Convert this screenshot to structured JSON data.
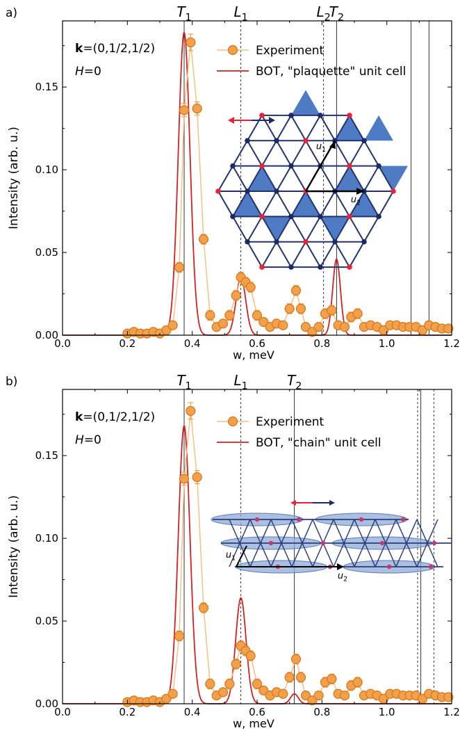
{
  "x_experiment": [
    0.2,
    0.22,
    0.24,
    0.26,
    0.28,
    0.3,
    0.32,
    0.34,
    0.36,
    0.375,
    0.395,
    0.415,
    0.435,
    0.455,
    0.475,
    0.495,
    0.515,
    0.535,
    0.55,
    0.565,
    0.58,
    0.6,
    0.62,
    0.64,
    0.66,
    0.68,
    0.7,
    0.72,
    0.735,
    0.75,
    0.77,
    0.79,
    0.81,
    0.83,
    0.85,
    0.87,
    0.89,
    0.91,
    0.93,
    0.95,
    0.97,
    0.99,
    1.01,
    1.03,
    1.05,
    1.07,
    1.09,
    1.11,
    1.13,
    1.15,
    1.17,
    1.19
  ],
  "y_experiment": [
    0.001,
    0.002,
    0.001,
    0.001,
    0.002,
    0.001,
    0.003,
    0.006,
    0.041,
    0.136,
    0.177,
    0.137,
    0.058,
    0.012,
    0.005,
    0.007,
    0.012,
    0.024,
    0.035,
    0.032,
    0.029,
    0.012,
    0.008,
    0.005,
    0.007,
    0.006,
    0.016,
    0.027,
    0.016,
    0.005,
    0.002,
    0.005,
    0.013,
    0.015,
    0.006,
    0.005,
    0.011,
    0.013,
    0.005,
    0.006,
    0.005,
    0.003,
    0.006,
    0.006,
    0.005,
    0.005,
    0.005,
    0.003,
    0.006,
    0.005,
    0.004,
    0.004
  ],
  "error_experiment": [
    0.002,
    0.002,
    0.002,
    0.002,
    0.002,
    0.002,
    0.002,
    0.002,
    0.003,
    0.004,
    0.005,
    0.004,
    0.003,
    0.003,
    0.002,
    0.002,
    0.003,
    0.003,
    0.003,
    0.003,
    0.003,
    0.003,
    0.002,
    0.002,
    0.002,
    0.002,
    0.003,
    0.003,
    0.003,
    0.002,
    0.002,
    0.002,
    0.003,
    0.003,
    0.002,
    0.002,
    0.003,
    0.003,
    0.002,
    0.002,
    0.002,
    0.002,
    0.002,
    0.002,
    0.002,
    0.002,
    0.002,
    0.002,
    0.002,
    0.002,
    0.002,
    0.002
  ],
  "chart_data": [
    {
      "type": "line",
      "panel_label": "a)",
      "xlabel": "w, meV",
      "ylabel": "Intensity (arb. u.)",
      "xlim": [
        0,
        1.2
      ],
      "ylim": [
        0,
        0.19
      ],
      "x_ticks": [
        "0.0",
        "0.2",
        "0.4",
        "0.6",
        "0.8",
        "1.0",
        "1.2"
      ],
      "y_ticks": [
        "0.00",
        "0.05",
        "0.10",
        "0.15"
      ],
      "annotation_k": "=(0,1/2,1/2)",
      "annotation_h": "=0",
      "legend": "top-right",
      "series": [
        {
          "name": "Experiment",
          "color": "#f2a04a"
        },
        {
          "name": "BOT, \"plaquette\" unit cell",
          "color": "#d42020",
          "peaks": [
            {
              "center": 0.375,
              "height": 0.183,
              "width": 0.018
            },
            {
              "center": 0.55,
              "height": 0.035,
              "width": 0.015
            },
            {
              "center": 0.845,
              "height": 0.046,
              "width": 0.012
            }
          ]
        }
      ],
      "mode_labels": [
        {
          "name": "T",
          "sub": "1",
          "x": 0.375
        },
        {
          "name": "L",
          "sub": "1",
          "x": 0.55
        },
        {
          "name": "L",
          "sub": "2",
          "x": 0.805
        },
        {
          "name": "T",
          "sub": "2",
          "x": 0.845
        }
      ],
      "vlines": [
        {
          "x": 0.375,
          "style": "solid"
        },
        {
          "x": 0.55,
          "style": "dashed"
        },
        {
          "x": 0.805,
          "style": "dashed"
        },
        {
          "x": 0.845,
          "style": "solid"
        },
        {
          "x": 1.075,
          "style": "solid"
        },
        {
          "x": 1.13,
          "style": "solid"
        }
      ],
      "inset_labels": {
        "u1": "u",
        "u1_sub": "1",
        "u2": "u",
        "u2_sub": "2"
      }
    },
    {
      "type": "line",
      "panel_label": "b)",
      "xlabel": "w, meV",
      "ylabel": "Intensity (arb. u.)",
      "xlim": [
        0,
        1.2
      ],
      "ylim": [
        0,
        0.19
      ],
      "x_ticks": [
        "0.0",
        "0.2",
        "0.4",
        "0.6",
        "0.8",
        "1.0",
        "1.2"
      ],
      "y_ticks": [
        "0.00",
        "0.05",
        "0.10",
        "0.15"
      ],
      "annotation_k": "=(0,1/2,1/2)",
      "annotation_h": "=0",
      "legend": "top-right",
      "series": [
        {
          "name": "Experiment",
          "color": "#f2a04a"
        },
        {
          "name": "BOT, \"chain\" unit cell",
          "color": "#d42020",
          "peaks": [
            {
              "center": 0.375,
              "height": 0.168,
              "width": 0.018
            },
            {
              "center": 0.55,
              "height": 0.064,
              "width": 0.016
            },
            {
              "center": 0.715,
              "height": 0.006,
              "width": 0.012
            }
          ]
        }
      ],
      "mode_labels": [
        {
          "name": "T",
          "sub": "1",
          "x": 0.375
        },
        {
          "name": "L",
          "sub": "1",
          "x": 0.55
        },
        {
          "name": "T",
          "sub": "2",
          "x": 0.715
        }
      ],
      "vlines": [
        {
          "x": 0.375,
          "style": "solid"
        },
        {
          "x": 0.55,
          "style": "dashed"
        },
        {
          "x": 0.715,
          "style": "solid"
        },
        {
          "x": 1.095,
          "style": "dashed"
        },
        {
          "x": 1.105,
          "style": "solid"
        },
        {
          "x": 1.145,
          "style": "dashed"
        }
      ],
      "inset_labels": {
        "u1": "u",
        "u1_sub": "1",
        "u2": "u",
        "u2_sub": "2"
      }
    }
  ]
}
